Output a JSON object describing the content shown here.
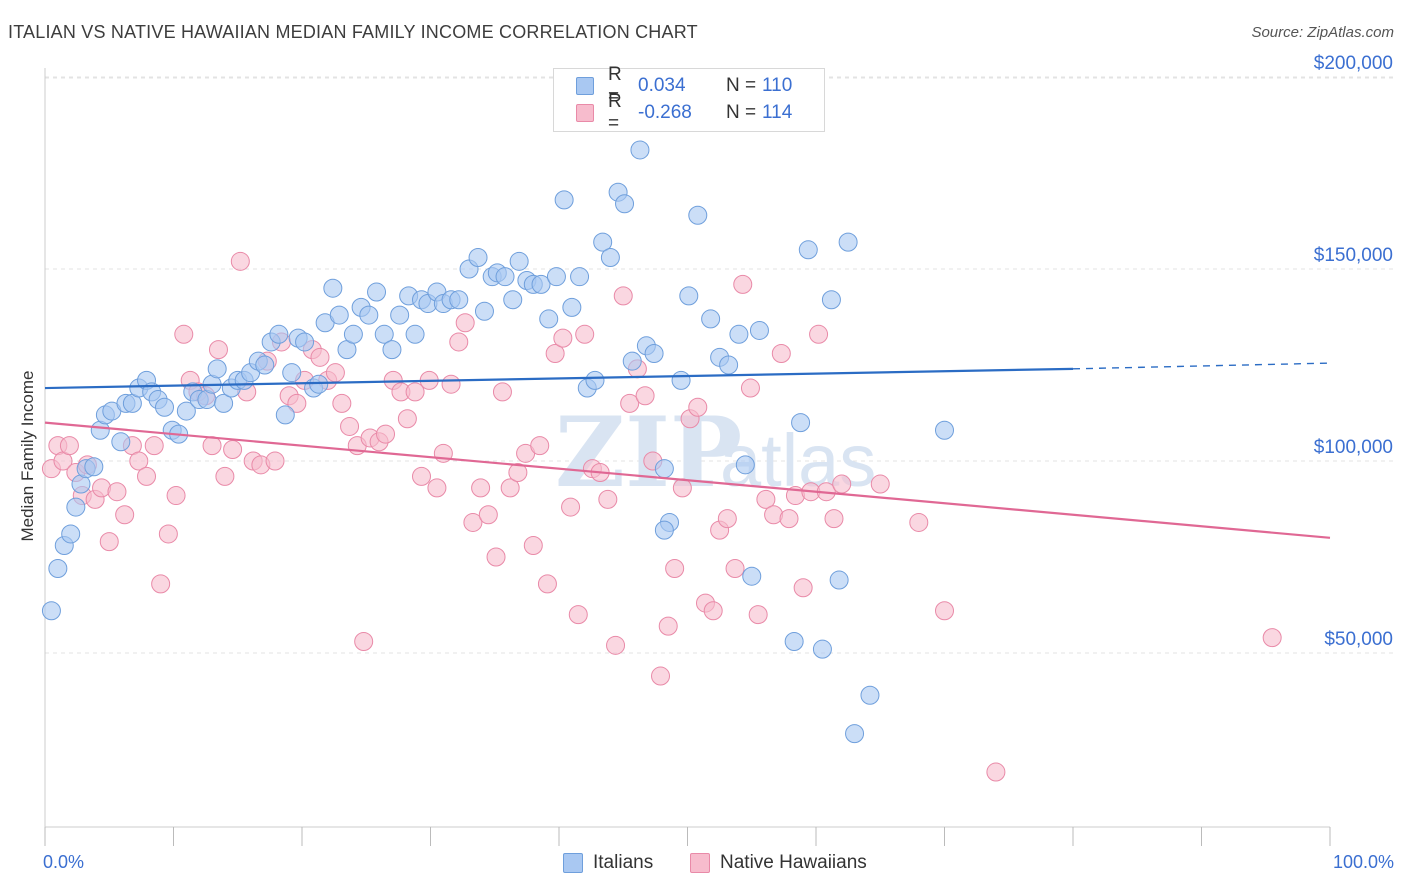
{
  "header": {
    "title": "ITALIAN VS NATIVE HAWAIIAN MEDIAN FAMILY INCOME CORRELATION CHART",
    "source": "Source: ZipAtlas.com"
  },
  "legend_top": {
    "rows": [
      {
        "r_label": "R =",
        "r_value": "0.034",
        "n_label": "N =",
        "n_value": "110"
      },
      {
        "r_label": "R =",
        "r_value": "-0.268",
        "n_label": "N =",
        "n_value": "114"
      }
    ]
  },
  "legend_bottom": {
    "items": [
      {
        "label": "Italians"
      },
      {
        "label": "Native Hawaiians"
      }
    ]
  },
  "axes": {
    "ylabel": "Median Family Income",
    "x_min_label": "0.0%",
    "x_max_label": "100.0%",
    "y_ticks": [
      "$50,000",
      "$100,000",
      "$150,000",
      "$200,000"
    ]
  },
  "colors": {
    "italians_fill": "#a9c8f2",
    "italians_stroke": "#6f9fdc",
    "italians_line": "#2b6cc4",
    "hawaiians_fill": "#f7bccd",
    "hawaiians_stroke": "#e98aa8",
    "hawaiians_line": "#e06894",
    "tick_label": "#3b6fd1",
    "grid": "#e3e3e3",
    "watermark": "#d9e4f2"
  },
  "watermark": {
    "a": "ZIP",
    "b": "atlas"
  },
  "chart_data": {
    "type": "scatter",
    "xlim": [
      0,
      100
    ],
    "ylim": [
      5000,
      210000
    ],
    "y_gridlines": [
      50000,
      100000,
      150000,
      200000
    ],
    "grid": true,
    "legend_placement": "top-center",
    "series": [
      {
        "name": "Italians",
        "trend": {
          "x0": 0,
          "y0": 119000,
          "x1": 80,
          "y1": 124000,
          "dashed_to_x": 100,
          "dashed_to_y": 125500
        },
        "points": [
          [
            0.5,
            61000
          ],
          [
            1.0,
            72000
          ],
          [
            1.5,
            78000
          ],
          [
            2.0,
            81000
          ],
          [
            2.4,
            88000
          ],
          [
            2.8,
            94000
          ],
          [
            3.2,
            98000
          ],
          [
            3.8,
            98500
          ],
          [
            4.3,
            108000
          ],
          [
            4.7,
            112000
          ],
          [
            5.2,
            113000
          ],
          [
            5.9,
            105000
          ],
          [
            6.3,
            115000
          ],
          [
            6.8,
            115000
          ],
          [
            7.3,
            119000
          ],
          [
            7.9,
            121000
          ],
          [
            8.3,
            118000
          ],
          [
            8.8,
            116000
          ],
          [
            9.3,
            114000
          ],
          [
            9.9,
            108000
          ],
          [
            10.4,
            107000
          ],
          [
            11.0,
            113000
          ],
          [
            11.5,
            118000
          ],
          [
            12.0,
            116000
          ],
          [
            12.6,
            116000
          ],
          [
            13.0,
            120000
          ],
          [
            13.4,
            124000
          ],
          [
            13.9,
            115000
          ],
          [
            14.5,
            119000
          ],
          [
            15.0,
            121000
          ],
          [
            15.5,
            121000
          ],
          [
            16.0,
            123000
          ],
          [
            16.6,
            126000
          ],
          [
            17.1,
            125000
          ],
          [
            17.6,
            131000
          ],
          [
            18.2,
            133000
          ],
          [
            18.7,
            112000
          ],
          [
            19.2,
            123000
          ],
          [
            19.7,
            132000
          ],
          [
            20.2,
            131000
          ],
          [
            20.9,
            119000
          ],
          [
            21.3,
            120000
          ],
          [
            21.8,
            136000
          ],
          [
            22.4,
            145000
          ],
          [
            22.9,
            138000
          ],
          [
            23.5,
            129000
          ],
          [
            24.0,
            133000
          ],
          [
            24.6,
            140000
          ],
          [
            25.2,
            138000
          ],
          [
            25.8,
            144000
          ],
          [
            26.4,
            133000
          ],
          [
            27.0,
            129000
          ],
          [
            27.6,
            138000
          ],
          [
            28.3,
            143000
          ],
          [
            28.8,
            133000
          ],
          [
            29.3,
            142000
          ],
          [
            29.8,
            141000
          ],
          [
            30.5,
            144000
          ],
          [
            31.0,
            141000
          ],
          [
            31.6,
            142000
          ],
          [
            32.2,
            142000
          ],
          [
            33.0,
            150000
          ],
          [
            33.7,
            153000
          ],
          [
            34.2,
            139000
          ],
          [
            34.8,
            148000
          ],
          [
            35.2,
            149000
          ],
          [
            35.8,
            148000
          ],
          [
            36.4,
            142000
          ],
          [
            36.9,
            152000
          ],
          [
            37.5,
            147000
          ],
          [
            38.0,
            146000
          ],
          [
            38.6,
            146000
          ],
          [
            39.2,
            137000
          ],
          [
            39.8,
            148000
          ],
          [
            40.4,
            168000
          ],
          [
            41.0,
            140000
          ],
          [
            41.6,
            148000
          ],
          [
            42.2,
            119000
          ],
          [
            42.8,
            121000
          ],
          [
            43.4,
            157000
          ],
          [
            44.0,
            153000
          ],
          [
            44.6,
            170000
          ],
          [
            45.1,
            167000
          ],
          [
            45.7,
            126000
          ],
          [
            46.3,
            181000
          ],
          [
            46.8,
            130000
          ],
          [
            47.4,
            128000
          ],
          [
            48.2,
            98000
          ],
          [
            48.6,
            84000
          ],
          [
            48.2,
            82000
          ],
          [
            49.5,
            121000
          ],
          [
            50.1,
            143000
          ],
          [
            50.8,
            164000
          ],
          [
            51.8,
            137000
          ],
          [
            52.5,
            127000
          ],
          [
            53.2,
            125000
          ],
          [
            54.0,
            133000
          ],
          [
            54.5,
            99000
          ],
          [
            55.0,
            70000
          ],
          [
            55.6,
            134000
          ],
          [
            58.3,
            53000
          ],
          [
            58.8,
            110000
          ],
          [
            59.4,
            155000
          ],
          [
            60.5,
            51000
          ],
          [
            61.2,
            142000
          ],
          [
            61.8,
            69000
          ],
          [
            62.5,
            157000
          ],
          [
            63.0,
            29000
          ],
          [
            64.2,
            39000
          ],
          [
            70.0,
            108000
          ]
        ]
      },
      {
        "name": "Native Hawaiians",
        "trend": {
          "x0": 0,
          "y0": 110000,
          "x1": 100,
          "y1": 80000
        },
        "points": [
          [
            0.5,
            98000
          ],
          [
            1.0,
            104000
          ],
          [
            1.4,
            100000
          ],
          [
            1.9,
            104000
          ],
          [
            2.4,
            97000
          ],
          [
            2.9,
            91000
          ],
          [
            3.3,
            99000
          ],
          [
            3.9,
            90000
          ],
          [
            4.4,
            93000
          ],
          [
            5.0,
            79000
          ],
          [
            5.6,
            92000
          ],
          [
            6.2,
            86000
          ],
          [
            6.8,
            104000
          ],
          [
            7.3,
            100000
          ],
          [
            7.9,
            96000
          ],
          [
            8.5,
            104000
          ],
          [
            9.0,
            68000
          ],
          [
            9.6,
            81000
          ],
          [
            10.2,
            91000
          ],
          [
            10.8,
            133000
          ],
          [
            11.3,
            121000
          ],
          [
            11.9,
            118000
          ],
          [
            12.5,
            117000
          ],
          [
            13.0,
            104000
          ],
          [
            13.5,
            129000
          ],
          [
            14.0,
            96000
          ],
          [
            14.6,
            103000
          ],
          [
            15.2,
            152000
          ],
          [
            15.7,
            118000
          ],
          [
            16.2,
            100000
          ],
          [
            16.8,
            99000
          ],
          [
            17.3,
            126000
          ],
          [
            17.9,
            100000
          ],
          [
            18.4,
            131000
          ],
          [
            19.0,
            117000
          ],
          [
            19.6,
            115000
          ],
          [
            20.2,
            121000
          ],
          [
            20.8,
            129000
          ],
          [
            21.4,
            127000
          ],
          [
            22.0,
            121000
          ],
          [
            22.6,
            123000
          ],
          [
            23.1,
            115000
          ],
          [
            23.7,
            109000
          ],
          [
            24.3,
            104000
          ],
          [
            24.8,
            53000
          ],
          [
            25.3,
            106000
          ],
          [
            26.0,
            105000
          ],
          [
            26.5,
            107000
          ],
          [
            27.1,
            121000
          ],
          [
            27.7,
            118000
          ],
          [
            28.2,
            111000
          ],
          [
            28.8,
            118000
          ],
          [
            29.3,
            96000
          ],
          [
            29.9,
            121000
          ],
          [
            30.5,
            93000
          ],
          [
            31.0,
            102000
          ],
          [
            31.6,
            120000
          ],
          [
            32.2,
            131000
          ],
          [
            32.7,
            136000
          ],
          [
            33.3,
            84000
          ],
          [
            33.9,
            93000
          ],
          [
            34.5,
            86000
          ],
          [
            35.1,
            75000
          ],
          [
            35.6,
            118000
          ],
          [
            36.2,
            93000
          ],
          [
            36.8,
            97000
          ],
          [
            37.4,
            102000
          ],
          [
            38.0,
            78000
          ],
          [
            38.5,
            104000
          ],
          [
            39.1,
            68000
          ],
          [
            39.7,
            128000
          ],
          [
            40.3,
            132000
          ],
          [
            40.9,
            88000
          ],
          [
            41.5,
            60000
          ],
          [
            42.0,
            133000
          ],
          [
            42.6,
            98000
          ],
          [
            43.2,
            97000
          ],
          [
            43.8,
            90000
          ],
          [
            44.4,
            52000
          ],
          [
            45.0,
            143000
          ],
          [
            45.5,
            115000
          ],
          [
            46.1,
            124000
          ],
          [
            46.7,
            117000
          ],
          [
            47.3,
            100000
          ],
          [
            47.9,
            44000
          ],
          [
            48.5,
            57000
          ],
          [
            49.0,
            72000
          ],
          [
            49.6,
            93000
          ],
          [
            50.2,
            111000
          ],
          [
            50.8,
            114000
          ],
          [
            51.4,
            63000
          ],
          [
            52.0,
            61000
          ],
          [
            52.5,
            82000
          ],
          [
            53.1,
            85000
          ],
          [
            53.7,
            72000
          ],
          [
            54.3,
            146000
          ],
          [
            54.9,
            119000
          ],
          [
            55.5,
            60000
          ],
          [
            56.1,
            90000
          ],
          [
            56.7,
            86000
          ],
          [
            57.3,
            128000
          ],
          [
            57.9,
            85000
          ],
          [
            58.4,
            91000
          ],
          [
            59.0,
            67000
          ],
          [
            59.6,
            92000
          ],
          [
            60.2,
            133000
          ],
          [
            60.8,
            92000
          ],
          [
            61.4,
            85000
          ],
          [
            62.0,
            94000
          ],
          [
            65.0,
            94000
          ],
          [
            68.0,
            84000
          ],
          [
            70.0,
            61000
          ],
          [
            74.0,
            19000
          ],
          [
            95.5,
            54000
          ]
        ]
      }
    ]
  }
}
